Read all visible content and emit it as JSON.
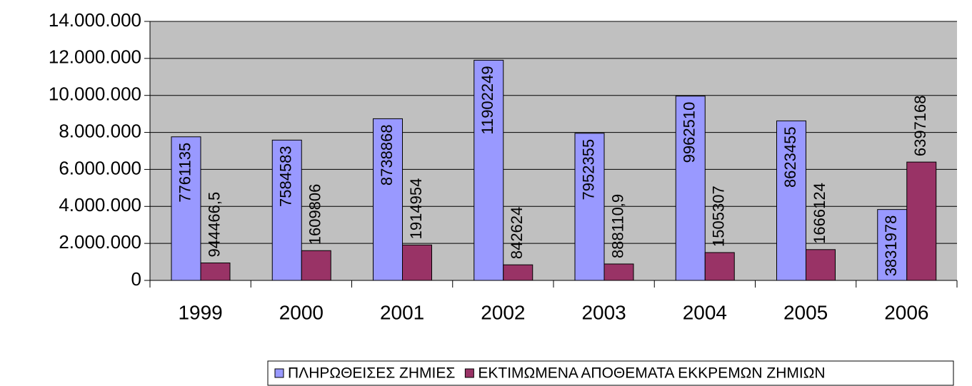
{
  "chart_data": {
    "type": "bar",
    "categories": [
      "1999",
      "2000",
      "2001",
      "2002",
      "2003",
      "2004",
      "2005",
      "2006"
    ],
    "series": [
      {
        "name": "ΠΛΗΡΩΘΕΙΣΕΣ ΖΗΜΙΕΣ",
        "color": "#9999ff",
        "values": [
          7761135,
          7584583,
          8738868,
          11902249,
          7952355,
          9962510,
          8623455,
          3831978
        ]
      },
      {
        "name": "ΕΚΤΙΜΩΜΕΝΑ ΑΠΟΘΕΜΑΤΑ ΕΚΚΡΕΜΩΝ ΖΗΜΙΩΝ",
        "color": "#993366",
        "values": [
          944466.5,
          1609806,
          1914954,
          842624,
          888110.9,
          1505307,
          1666124,
          6397168
        ],
        "value_labels": [
          "944466,5",
          "1609806",
          "1914954",
          "842624",
          "888110,9",
          "1505307",
          "1666124",
          "6397168"
        ]
      }
    ],
    "ylim": [
      0,
      14000000
    ],
    "yticks": [
      0,
      {
        "value": 2000000,
        "label": "2.000.000"
      },
      {
        "value": 4000000,
        "label": "4.000.000"
      },
      {
        "value": 6000000,
        "label": "6.000.000"
      },
      {
        "value": 8000000,
        "label": "8.000.000"
      },
      {
        "value": 10000000,
        "label": "10.000.000"
      },
      {
        "value": 12000000,
        "label": "12.000.000"
      },
      {
        "value": 14000000,
        "label": "14.000.000"
      }
    ],
    "grid": true,
    "plot_background": "#c0c0c0",
    "legend": "bottom"
  }
}
